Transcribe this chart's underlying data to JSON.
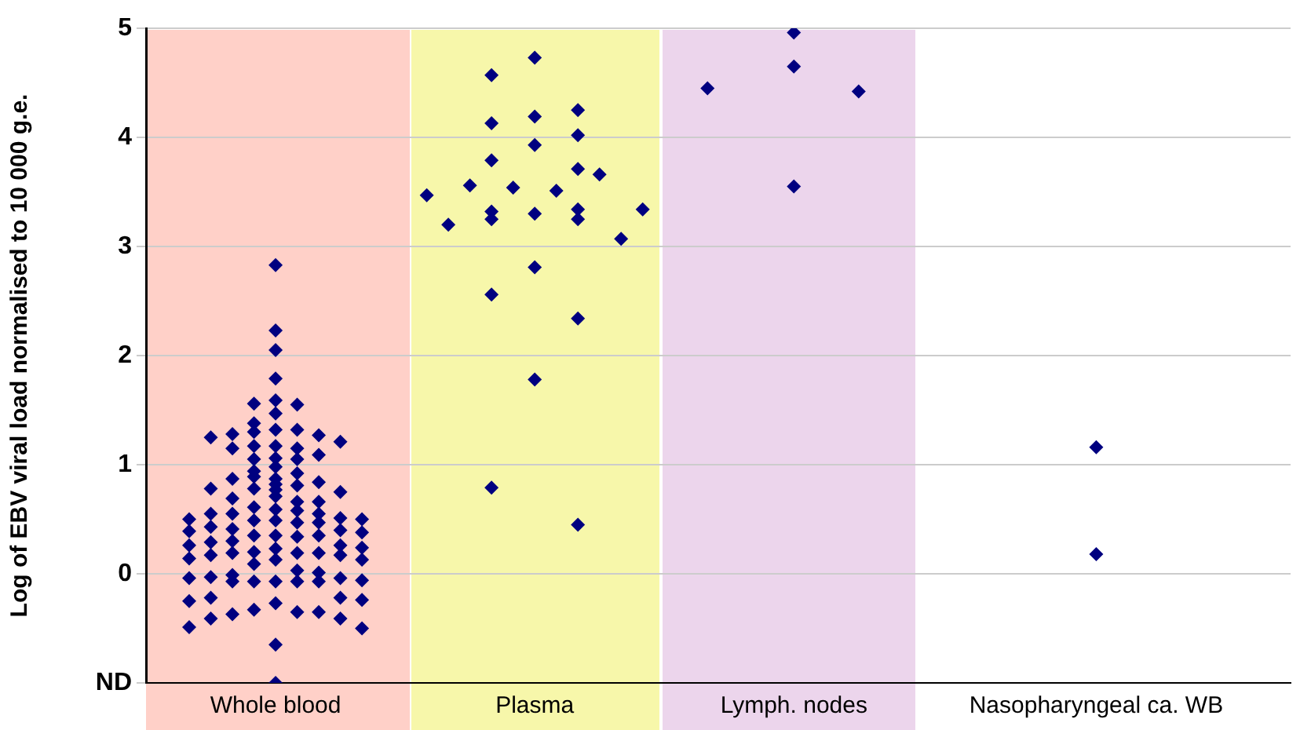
{
  "chart_data": {
    "type": "scatter",
    "ylabel": "Log of EBV viral load normalised to 10 000 g.e.",
    "categories": [
      null,
      null,
      null,
      null,
      null,
      null,
      "Whole blood",
      null,
      null,
      null,
      null,
      null,
      null,
      null,
      null,
      null,
      null,
      null,
      "Plasma",
      null,
      null,
      null,
      null,
      null,
      null,
      null,
      null,
      null,
      null,
      null,
      "Lymph. nodes",
      null,
      null,
      null,
      null,
      null,
      null,
      null,
      null,
      null,
      null,
      null,
      null,
      null,
      "Nasopharyngeal ca. WB",
      null,
      null,
      null,
      null,
      null,
      null,
      null,
      null,
      null
    ],
    "ylim": [
      -1,
      5
    ],
    "yticks": [
      {
        "value": -1,
        "label": "ND"
      },
      0,
      1,
      2,
      3,
      4,
      5
    ],
    "grid": "y",
    "marker": "diamond",
    "series": [
      {
        "color": "#000080",
        "values": [
          null,
          null,
          0.5,
          1.25,
          1.28,
          1.56,
          2.83,
          1.55,
          1.27,
          1.21,
          0.5,
          null,
          null,
          3.47,
          3.2,
          3.56,
          4.57,
          3.54,
          4.73,
          3.51,
          4.25,
          3.66,
          3.07,
          3.34,
          null,
          null,
          4.45,
          null,
          null,
          null,
          4.96,
          null,
          null,
          4.42,
          null,
          null,
          null,
          null,
          null,
          null,
          null,
          null,
          null,
          null,
          1.16,
          null,
          null,
          null,
          null,
          null,
          null,
          null,
          null,
          null
        ]
      },
      {
        "color": "#000080",
        "values": [
          null,
          null,
          0.39,
          0.78,
          1.15,
          1.38,
          2.23,
          1.32,
          1.09,
          0.75,
          0.38,
          null,
          null,
          null,
          null,
          null,
          4.13,
          null,
          4.19,
          null,
          4.02,
          null,
          null,
          null,
          null,
          null,
          null,
          null,
          null,
          null,
          4.65,
          null,
          null,
          null,
          null,
          null,
          null,
          null,
          null,
          null,
          null,
          null,
          null,
          null,
          0.18,
          null,
          null,
          null,
          null,
          null,
          null,
          null,
          null,
          null
        ]
      },
      {
        "color": "#000080",
        "values": [
          null,
          null,
          0.26,
          0.55,
          0.87,
          1.3,
          2.05,
          1.15,
          0.84,
          0.51,
          0.24,
          null,
          null,
          null,
          null,
          null,
          3.79,
          null,
          3.93,
          null,
          3.71,
          null,
          null,
          null,
          null,
          null,
          null,
          null,
          null,
          null,
          3.55,
          null,
          null,
          null,
          null,
          null,
          null,
          null,
          null,
          null,
          null,
          null,
          null,
          null,
          null,
          null,
          null,
          null,
          null,
          null,
          null,
          null,
          null,
          null
        ]
      },
      {
        "color": "#000080",
        "values": [
          null,
          null,
          0.14,
          0.43,
          0.69,
          1.17,
          1.79,
          1.05,
          0.66,
          0.4,
          0.13,
          null,
          null,
          null,
          null,
          null,
          3.32,
          null,
          3.3,
          null,
          3.34,
          null,
          null,
          null,
          null,
          null,
          null,
          null,
          null,
          null,
          null,
          null,
          null,
          null,
          null,
          null,
          null,
          null,
          null,
          null,
          null,
          null,
          null,
          null,
          null,
          null,
          null,
          null,
          null,
          null,
          null,
          null,
          null,
          null
        ]
      },
      {
        "color": "#000080",
        "values": [
          null,
          null,
          -0.04,
          0.29,
          0.55,
          1.05,
          1.59,
          0.92,
          0.55,
          0.26,
          -0.06,
          null,
          null,
          null,
          null,
          null,
          3.25,
          null,
          2.81,
          null,
          3.25,
          null,
          null,
          null,
          null,
          null,
          null,
          null,
          null,
          null,
          null,
          null,
          null,
          null,
          null,
          null,
          null,
          null,
          null,
          null,
          null,
          null,
          null,
          null,
          null,
          null,
          null,
          null,
          null,
          null,
          null,
          null,
          null,
          null
        ]
      },
      {
        "color": "#000080",
        "values": [
          null,
          null,
          -0.25,
          0.17,
          0.41,
          0.94,
          1.47,
          0.81,
          0.47,
          0.17,
          -0.24,
          null,
          null,
          null,
          null,
          null,
          2.56,
          null,
          1.78,
          null,
          2.34,
          null,
          null,
          null,
          null,
          null,
          null,
          null,
          null,
          null,
          null,
          null,
          null,
          null,
          null,
          null,
          null,
          null,
          null,
          null,
          null,
          null,
          null,
          null,
          null,
          null,
          null,
          null,
          null,
          null,
          null,
          null,
          null,
          null
        ]
      },
      {
        "color": "#000080",
        "values": [
          null,
          null,
          -0.49,
          -0.03,
          0.3,
          0.89,
          1.32,
          0.66,
          0.35,
          -0.04,
          -0.5,
          null,
          null,
          null,
          null,
          null,
          0.79,
          null,
          null,
          null,
          0.45,
          null,
          null,
          null,
          null,
          null,
          null,
          null,
          null,
          null,
          null,
          null,
          null,
          null,
          null,
          null,
          null,
          null,
          null,
          null,
          null,
          null,
          null,
          null,
          null,
          null,
          null,
          null,
          null,
          null,
          null,
          null,
          null,
          null
        ]
      },
      {
        "color": "#000080",
        "values": [
          null,
          null,
          null,
          -0.22,
          0.19,
          0.78,
          1.17,
          0.58,
          0.19,
          -0.22,
          null,
          null,
          null,
          null,
          null,
          null,
          null,
          null,
          null,
          null,
          null,
          null,
          null,
          null,
          null,
          null,
          null,
          null,
          null,
          null,
          null,
          null,
          null,
          null,
          null,
          null,
          null,
          null,
          null,
          null,
          null,
          null,
          null,
          null,
          null,
          null,
          null,
          null,
          null,
          null,
          null,
          null,
          null,
          null
        ]
      },
      {
        "color": "#000080",
        "values": [
          null,
          null,
          null,
          -0.41,
          -0.01,
          0.61,
          1.06,
          0.47,
          0.01,
          -0.41,
          null,
          null,
          null,
          null,
          null,
          null,
          null,
          null,
          null,
          null,
          null,
          null,
          null,
          null,
          null,
          null,
          null,
          null,
          null,
          null,
          null,
          null,
          null,
          null,
          null,
          null,
          null,
          null,
          null,
          null,
          null,
          null,
          null,
          null,
          null,
          null,
          null,
          null,
          null,
          null,
          null,
          null,
          null,
          null
        ]
      },
      {
        "color": "#000080",
        "values": [
          null,
          null,
          null,
          null,
          -0.07,
          0.49,
          0.98,
          0.34,
          -0.07,
          null,
          null,
          null,
          null,
          null,
          null,
          null,
          null,
          null,
          null,
          null,
          null,
          null,
          null,
          null,
          null,
          null,
          null,
          null,
          null,
          null,
          null,
          null,
          null,
          null,
          null,
          null,
          null,
          null,
          null,
          null,
          null,
          null,
          null,
          null,
          null,
          null,
          null,
          null,
          null,
          null,
          null,
          null,
          null,
          null
        ]
      },
      {
        "color": "#000080",
        "values": [
          null,
          null,
          null,
          null,
          -0.37,
          0.35,
          0.87,
          0.19,
          -0.35,
          null,
          null,
          null,
          null,
          null,
          null,
          null,
          null,
          null,
          null,
          null,
          null,
          null,
          null,
          null,
          null,
          null,
          null,
          null,
          null,
          null,
          null,
          null,
          null,
          null,
          null,
          null,
          null,
          null,
          null,
          null,
          null,
          null,
          null,
          null,
          null,
          null,
          null,
          null,
          null,
          null,
          null,
          null,
          null,
          null
        ]
      },
      {
        "color": "#000080",
        "values": [
          null,
          null,
          null,
          null,
          null,
          0.2,
          0.82,
          0.03,
          null,
          null,
          null,
          null,
          null,
          null,
          null,
          null,
          null,
          null,
          null,
          null,
          null,
          null,
          null,
          null,
          null,
          null,
          null,
          null,
          null,
          null,
          null,
          null,
          null,
          null,
          null,
          null,
          null,
          null,
          null,
          null,
          null,
          null,
          null,
          null,
          null,
          null,
          null,
          null,
          null,
          null,
          null,
          null,
          null,
          null
        ]
      },
      {
        "color": "#000080",
        "values": [
          null,
          null,
          null,
          null,
          null,
          0.09,
          0.77,
          -0.07,
          null,
          null,
          null,
          null,
          null,
          null,
          null,
          null,
          null,
          null,
          null,
          null,
          null,
          null,
          null,
          null,
          null,
          null,
          null,
          null,
          null,
          null,
          null,
          null,
          null,
          null,
          null,
          null,
          null,
          null,
          null,
          null,
          null,
          null,
          null,
          null,
          null,
          null,
          null,
          null,
          null,
          null,
          null,
          null,
          null,
          null
        ]
      },
      {
        "color": "#000080",
        "values": [
          null,
          null,
          null,
          null,
          null,
          -0.07,
          0.71,
          -0.35,
          null,
          null,
          null,
          null,
          null,
          null,
          null,
          null,
          null,
          null,
          null,
          null,
          null,
          null,
          null,
          null,
          null,
          null,
          null,
          null,
          null,
          null,
          null,
          null,
          null,
          null,
          null,
          null,
          null,
          null,
          null,
          null,
          null,
          null,
          null,
          null,
          null,
          null,
          null,
          null,
          null,
          null,
          null,
          null,
          null,
          null
        ]
      },
      {
        "color": "#000080",
        "values": [
          null,
          null,
          null,
          null,
          null,
          -0.33,
          0.59,
          null,
          null,
          null,
          null,
          null,
          null,
          null,
          null,
          null,
          null,
          null,
          null,
          null,
          null,
          null,
          null,
          null,
          null,
          null,
          null,
          null,
          null,
          null,
          null,
          null,
          null,
          null,
          null,
          null,
          null,
          null,
          null,
          null,
          null,
          null,
          null,
          null,
          null,
          null,
          null,
          null,
          null,
          null,
          null,
          null,
          null,
          null
        ]
      },
      {
        "color": "#000080",
        "values": [
          null,
          null,
          null,
          null,
          null,
          null,
          0.49,
          null,
          null,
          null,
          null,
          null,
          null,
          null,
          null,
          null,
          null,
          null,
          null,
          null,
          null,
          null,
          null,
          null,
          null,
          null,
          null,
          null,
          null,
          null,
          null,
          null,
          null,
          null,
          null,
          null,
          null,
          null,
          null,
          null,
          null,
          null,
          null,
          null,
          null,
          null,
          null,
          null,
          null,
          null,
          null,
          null,
          null,
          null
        ]
      },
      {
        "color": "#000080",
        "values": [
          null,
          null,
          null,
          null,
          null,
          null,
          0.35,
          null,
          null,
          null,
          null,
          null,
          null,
          null,
          null,
          null,
          null,
          null,
          null,
          null,
          null,
          null,
          null,
          null,
          null,
          null,
          null,
          null,
          null,
          null,
          null,
          null,
          null,
          null,
          null,
          null,
          null,
          null,
          null,
          null,
          null,
          null,
          null,
          null,
          null,
          null,
          null,
          null,
          null,
          null,
          null,
          null,
          null,
          null
        ]
      },
      {
        "color": "#000080",
        "values": [
          null,
          null,
          null,
          null,
          null,
          null,
          0.23,
          null,
          null,
          null,
          null,
          null,
          null,
          null,
          null,
          null,
          null,
          null,
          null,
          null,
          null,
          null,
          null,
          null,
          null,
          null,
          null,
          null,
          null,
          null,
          null,
          null,
          null,
          null,
          null,
          null,
          null,
          null,
          null,
          null,
          null,
          null,
          null,
          null,
          null,
          null,
          null,
          null,
          null,
          null,
          null,
          null,
          null,
          null
        ]
      },
      {
        "color": "#000080",
        "values": [
          null,
          null,
          null,
          null,
          null,
          null,
          0.13,
          null,
          null,
          null,
          null,
          null,
          null,
          null,
          null,
          null,
          null,
          null,
          null,
          null,
          null,
          null,
          null,
          null,
          null,
          null,
          null,
          null,
          null,
          null,
          null,
          null,
          null,
          null,
          null,
          null,
          null,
          null,
          null,
          null,
          null,
          null,
          null,
          null,
          null,
          null,
          null,
          null,
          null,
          null,
          null,
          null,
          null,
          null
        ]
      },
      {
        "color": "#000080",
        "values": [
          null,
          null,
          null,
          null,
          null,
          null,
          -0.07,
          null,
          null,
          null,
          null,
          null,
          null,
          null,
          null,
          null,
          null,
          null,
          null,
          null,
          null,
          null,
          null,
          null,
          null,
          null,
          null,
          null,
          null,
          null,
          null,
          null,
          null,
          null,
          null,
          null,
          null,
          null,
          null,
          null,
          null,
          null,
          null,
          null,
          null,
          null,
          null,
          null,
          null,
          null,
          null,
          null,
          null,
          null
        ]
      },
      {
        "color": "#000080",
        "values": [
          null,
          null,
          null,
          null,
          null,
          null,
          -0.27,
          null,
          null,
          null,
          null,
          null,
          null,
          null,
          null,
          null,
          null,
          null,
          null,
          null,
          null,
          null,
          null,
          null,
          null,
          null,
          null,
          null,
          null,
          null,
          null,
          null,
          null,
          null,
          null,
          null,
          null,
          null,
          null,
          null,
          null,
          null,
          null,
          null,
          null,
          null,
          null,
          null,
          null,
          null,
          null,
          null,
          null,
          null
        ]
      },
      {
        "color": "#000080",
        "values": [
          null,
          null,
          null,
          null,
          null,
          null,
          -0.65,
          null,
          null,
          null,
          null,
          null,
          null,
          null,
          null,
          null,
          null,
          null,
          null,
          null,
          null,
          null,
          null,
          null,
          null,
          null,
          null,
          null,
          null,
          null,
          null,
          null,
          null,
          null,
          null,
          null,
          null,
          null,
          null,
          null,
          null,
          null,
          null,
          null,
          null,
          null,
          null,
          null,
          null,
          null,
          null,
          null,
          null,
          null
        ]
      },
      {
        "color": "#000080",
        "values": [
          null,
          null,
          null,
          null,
          null,
          null,
          -1,
          null,
          null,
          null,
          null,
          null,
          null,
          null,
          null,
          null,
          null,
          null,
          null,
          null,
          null,
          null,
          null,
          null,
          null,
          null,
          null,
          null,
          null,
          null,
          null,
          null,
          null,
          null,
          null,
          null,
          null,
          null,
          null,
          null,
          null,
          null,
          null,
          null,
          null,
          null,
          null,
          null,
          null,
          null,
          null,
          null,
          null,
          null
        ]
      }
    ]
  }
}
